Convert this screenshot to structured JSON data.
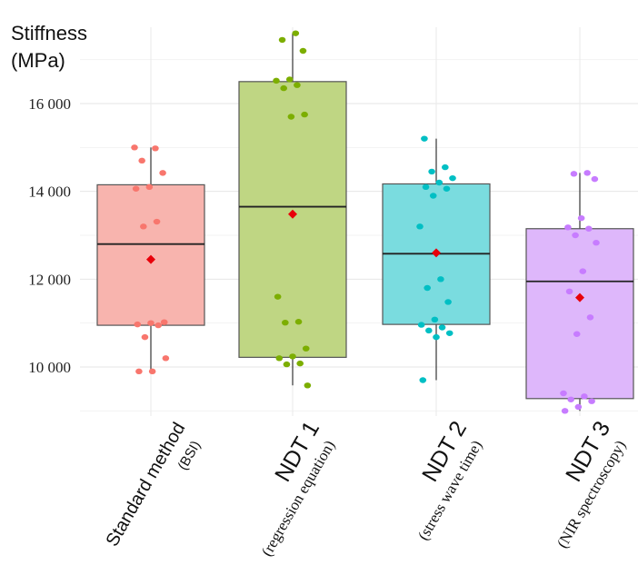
{
  "chart_data": {
    "type": "box",
    "ylabel_lines": [
      "Stiffness",
      "(MPa)"
    ],
    "ylim": [
      9000,
      17700
    ],
    "yticks": [
      10000,
      12000,
      14000,
      16000
    ],
    "ytick_labels": [
      "10 000",
      "12 000",
      "14 000",
      "16 000"
    ],
    "grid": true,
    "categories": [
      {
        "label_main": "Standard method",
        "label_sub": "(BSI)",
        "color": "#F8766D",
        "fill": "#F8B4AE",
        "q1": 10950,
        "median": 12800,
        "q3": 14150,
        "whisker_low": 9900,
        "whisker_high": 15000,
        "mean": 12450,
        "points": [
          15000,
          14980,
          14700,
          14420,
          14100,
          14060,
          13310,
          13200,
          11020,
          11000,
          10970,
          10950,
          10680,
          10200,
          9900,
          9900
        ]
      },
      {
        "label_main": "NDT 1",
        "label_sub": "(regression equation)",
        "color": "#7CAE00",
        "fill": "#BFD683",
        "q1": 10220,
        "median": 13650,
        "q3": 16500,
        "whisker_low": 9580,
        "whisker_high": 17600,
        "mean": 13480,
        "points": [
          17600,
          17450,
          17200,
          16550,
          16520,
          16420,
          16350,
          15750,
          15700,
          11600,
          11030,
          11010,
          10420,
          10240,
          10200,
          10080,
          10060,
          9580
        ]
      },
      {
        "label_main": "NDT 2",
        "label_sub": "(stress wave time)",
        "color": "#00BFC4",
        "fill": "#7ADCDF",
        "q1": 10970,
        "median": 12580,
        "q3": 14170,
        "whisker_low": 9700,
        "whisker_high": 15200,
        "mean": 12600,
        "points": [
          15200,
          14550,
          14450,
          14300,
          14200,
          14100,
          14060,
          13900,
          13200,
          12000,
          11800,
          11480,
          11080,
          10960,
          10900,
          10830,
          10770,
          10680,
          9700
        ]
      },
      {
        "label_main": "NDT 3",
        "label_sub": "(NIR spectroscopy)",
        "color": "#C77CFF",
        "fill": "#DEB7FB",
        "q1": 9280,
        "median": 11950,
        "q3": 13150,
        "whisker_low": 9000,
        "whisker_high": 14420,
        "mean": 11580,
        "points": [
          14420,
          14400,
          14280,
          13390,
          13180,
          13150,
          13000,
          12830,
          12180,
          11720,
          11130,
          10750,
          9400,
          9330,
          9260,
          9220,
          9090,
          9000
        ]
      }
    ],
    "mean_color": "#E8000A"
  }
}
